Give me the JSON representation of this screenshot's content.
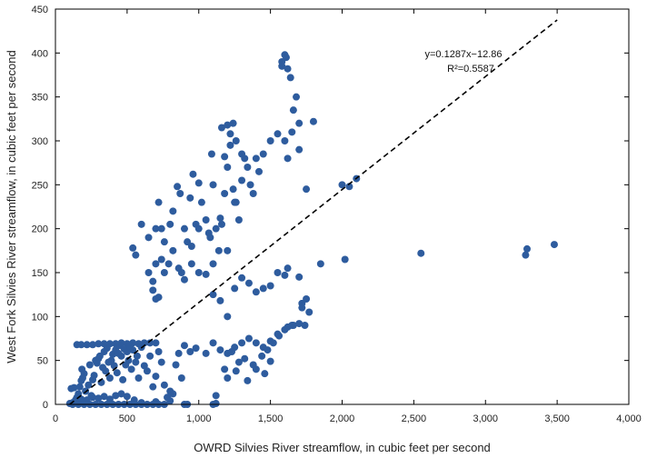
{
  "chart_data": {
    "type": "scatter",
    "xlabel": "OWRD Silvies River streamflow, in cubic feet per second",
    "ylabel": "West Fork Silvies River streamflow, in cubic feet per second",
    "xlim": [
      0,
      4000
    ],
    "ylim": [
      0,
      450
    ],
    "x_ticks": [
      0,
      500,
      1000,
      1500,
      2000,
      2500,
      3000,
      3500,
      4000
    ],
    "x_tick_labels": [
      "0",
      "500",
      "1,000",
      "1,500",
      "2,000",
      "2,500",
      "3,000",
      "3,500",
      "4,000"
    ],
    "y_ticks": [
      0,
      50,
      100,
      150,
      200,
      250,
      300,
      350,
      400,
      450
    ],
    "y_tick_labels": [
      "0",
      "50",
      "100",
      "150",
      "200",
      "250",
      "300",
      "350",
      "400",
      "450"
    ],
    "grid": false,
    "colors": {
      "points": "#2e5c9e",
      "regression_line": "#000000"
    },
    "regression": {
      "slope": 0.1287,
      "intercept": -12.86,
      "r2": 0.5587,
      "x_range": [
        100,
        3500
      ],
      "style": "dashed",
      "equation_label": "y=0.1287x−12.86",
      "r2_label": "R²=0.5587"
    },
    "points": [
      [
        100,
        1
      ],
      [
        110,
        18
      ],
      [
        120,
        2
      ],
      [
        130,
        19
      ],
      [
        140,
        5
      ],
      [
        150,
        8
      ],
      [
        160,
        12
      ],
      [
        170,
        20
      ],
      [
        180,
        27
      ],
      [
        185,
        40
      ],
      [
        190,
        30
      ],
      [
        200,
        35
      ],
      [
        210,
        15
      ],
      [
        220,
        3
      ],
      [
        230,
        22
      ],
      [
        240,
        45
      ],
      [
        250,
        10
      ],
      [
        260,
        28
      ],
      [
        270,
        33
      ],
      [
        280,
        50
      ],
      [
        290,
        47
      ],
      [
        300,
        52
      ],
      [
        310,
        55
      ],
      [
        320,
        25
      ],
      [
        330,
        42
      ],
      [
        340,
        60
      ],
      [
        350,
        38
      ],
      [
        360,
        64
      ],
      [
        370,
        48
      ],
      [
        380,
        30
      ],
      [
        390,
        50
      ],
      [
        400,
        57
      ],
      [
        410,
        44
      ],
      [
        420,
        62
      ],
      [
        430,
        36
      ],
      [
        440,
        58
      ],
      [
        450,
        67
      ],
      [
        460,
        55
      ],
      [
        470,
        28
      ],
      [
        480,
        63
      ],
      [
        490,
        45
      ],
      [
        500,
        60
      ],
      [
        510,
        50
      ],
      [
        520,
        66
      ],
      [
        530,
        40
      ],
      [
        540,
        62
      ],
      [
        550,
        5
      ],
      [
        560,
        48
      ],
      [
        570,
        55
      ],
      [
        580,
        30
      ],
      [
        600,
        65
      ],
      [
        620,
        44
      ],
      [
        640,
        38
      ],
      [
        660,
        55
      ],
      [
        680,
        20
      ],
      [
        700,
        32
      ],
      [
        720,
        60
      ],
      [
        740,
        48
      ],
      [
        760,
        22
      ],
      [
        780,
        8
      ],
      [
        800,
        15
      ],
      [
        820,
        12
      ],
      [
        840,
        45
      ],
      [
        860,
        58
      ],
      [
        880,
        30
      ],
      [
        900,
        67
      ],
      [
        940,
        60
      ],
      [
        980,
        64
      ],
      [
        1050,
        58
      ],
      [
        1100,
        70
      ],
      [
        1120,
        10
      ],
      [
        1150,
        62
      ],
      [
        1200,
        58
      ],
      [
        1250,
        65
      ],
      [
        1300,
        70
      ],
      [
        1350,
        75
      ],
      [
        1400,
        70
      ],
      [
        1450,
        65
      ],
      [
        1500,
        72
      ],
      [
        1550,
        80
      ],
      [
        1600,
        85
      ],
      [
        1650,
        90
      ],
      [
        1700,
        92
      ],
      [
        1720,
        110
      ],
      [
        1750,
        120
      ],
      [
        1180,
        40
      ],
      [
        1230,
        60
      ],
      [
        1280,
        48
      ],
      [
        1320,
        52
      ],
      [
        1380,
        45
      ],
      [
        1440,
        55
      ],
      [
        1480,
        62
      ],
      [
        1520,
        70
      ],
      [
        1560,
        78
      ],
      [
        1620,
        88
      ],
      [
        1660,
        90
      ],
      [
        1740,
        90
      ],
      [
        1770,
        105
      ],
      [
        1200,
        30
      ],
      [
        1260,
        38
      ],
      [
        1340,
        27
      ],
      [
        1400,
        40
      ],
      [
        1460,
        35
      ],
      [
        1500,
        49
      ],
      [
        150,
        68
      ],
      [
        180,
        68
      ],
      [
        220,
        68
      ],
      [
        260,
        68
      ],
      [
        300,
        69
      ],
      [
        340,
        69
      ],
      [
        380,
        69
      ],
      [
        420,
        69
      ],
      [
        460,
        70
      ],
      [
        500,
        69
      ],
      [
        540,
        70
      ],
      [
        580,
        69
      ],
      [
        620,
        70
      ],
      [
        660,
        70
      ],
      [
        700,
        70
      ],
      [
        120,
        0
      ],
      [
        160,
        0
      ],
      [
        200,
        0
      ],
      [
        240,
        0
      ],
      [
        280,
        0
      ],
      [
        320,
        0
      ],
      [
        360,
        0
      ],
      [
        400,
        0
      ],
      [
        440,
        0
      ],
      [
        480,
        0
      ],
      [
        520,
        0
      ],
      [
        560,
        0
      ],
      [
        600,
        0
      ],
      [
        640,
        0
      ],
      [
        680,
        0
      ],
      [
        720,
        0
      ],
      [
        760,
        0
      ],
      [
        900,
        0
      ],
      [
        920,
        0
      ],
      [
        1100,
        0
      ],
      [
        1120,
        1
      ],
      [
        140,
        4
      ],
      [
        180,
        6
      ],
      [
        220,
        5
      ],
      [
        260,
        8
      ],
      [
        300,
        7
      ],
      [
        340,
        9
      ],
      [
        380,
        6
      ],
      [
        420,
        10
      ],
      [
        460,
        12
      ],
      [
        500,
        9
      ],
      [
        600,
        2
      ],
      [
        700,
        3
      ],
      [
        800,
        4
      ],
      [
        540,
        178
      ],
      [
        560,
        170
      ],
      [
        600,
        205
      ],
      [
        650,
        190
      ],
      [
        700,
        200
      ],
      [
        720,
        230
      ],
      [
        740,
        165
      ],
      [
        760,
        185
      ],
      [
        800,
        205
      ],
      [
        820,
        220
      ],
      [
        850,
        248
      ],
      [
        870,
        240
      ],
      [
        880,
        150
      ],
      [
        900,
        200
      ],
      [
        920,
        185
      ],
      [
        940,
        235
      ],
      [
        960,
        262
      ],
      [
        980,
        205
      ],
      [
        1000,
        252
      ],
      [
        1020,
        230
      ],
      [
        1050,
        210
      ],
      [
        1070,
        195
      ],
      [
        1090,
        285
      ],
      [
        1100,
        250
      ],
      [
        1120,
        200
      ],
      [
        1140,
        175
      ],
      [
        1160,
        205
      ],
      [
        1180,
        240
      ],
      [
        1200,
        270
      ],
      [
        1220,
        295
      ],
      [
        1240,
        245
      ],
      [
        1260,
        230
      ],
      [
        1280,
        210
      ],
      [
        1300,
        255
      ],
      [
        1320,
        280
      ],
      [
        1340,
        270
      ],
      [
        1360,
        250
      ],
      [
        1380,
        240
      ],
      [
        1400,
        280
      ],
      [
        1420,
        265
      ],
      [
        1450,
        285
      ],
      [
        1500,
        300
      ],
      [
        1550,
        308
      ],
      [
        1580,
        390
      ],
      [
        1600,
        398
      ],
      [
        1620,
        382
      ],
      [
        1640,
        372
      ],
      [
        1660,
        335
      ],
      [
        1680,
        350
      ],
      [
        1700,
        320
      ],
      [
        1750,
        245
      ],
      [
        1800,
        322
      ],
      [
        1160,
        315
      ],
      [
        1180,
        282
      ],
      [
        1200,
        318
      ],
      [
        1220,
        308
      ],
      [
        1240,
        320
      ],
      [
        1300,
        285
      ],
      [
        1260,
        300
      ],
      [
        1620,
        280
      ],
      [
        1650,
        310
      ],
      [
        1600,
        300
      ],
      [
        1700,
        290
      ],
      [
        1580,
        385
      ],
      [
        1610,
        395
      ],
      [
        650,
        150
      ],
      [
        680,
        130
      ],
      [
        700,
        160
      ],
      [
        740,
        200
      ],
      [
        760,
        150
      ],
      [
        790,
        160
      ],
      [
        820,
        175
      ],
      [
        860,
        155
      ],
      [
        900,
        142
      ],
      [
        950,
        160
      ],
      [
        1000,
        150
      ],
      [
        1050,
        148
      ],
      [
        1100,
        125
      ],
      [
        1150,
        118
      ],
      [
        1200,
        100
      ],
      [
        1250,
        132
      ],
      [
        1300,
        144
      ],
      [
        1350,
        138
      ],
      [
        1400,
        128
      ],
      [
        1450,
        132
      ],
      [
        1500,
        135
      ],
      [
        1550,
        150
      ],
      [
        1600,
        147
      ],
      [
        1620,
        155
      ],
      [
        1700,
        145
      ],
      [
        1720,
        115
      ],
      [
        680,
        140
      ],
      [
        700,
        120
      ],
      [
        720,
        122
      ],
      [
        1850,
        160
      ],
      [
        2000,
        250
      ],
      [
        2050,
        248
      ],
      [
        2100,
        257
      ],
      [
        2020,
        165
      ],
      [
        2550,
        172
      ],
      [
        3280,
        170
      ],
      [
        3290,
        177
      ],
      [
        3480,
        182
      ],
      [
        1000,
        200
      ],
      [
        1150,
        212
      ],
      [
        1250,
        230
      ],
      [
        950,
        180
      ],
      [
        1080,
        190
      ],
      [
        1100,
        160
      ],
      [
        1200,
        175
      ]
    ]
  }
}
